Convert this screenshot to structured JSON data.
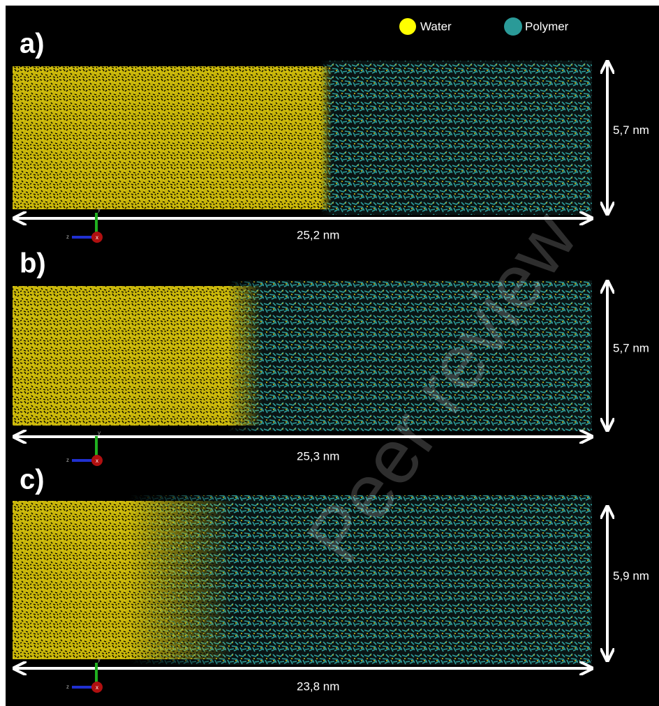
{
  "legend": [
    {
      "label": "Water"
    },
    {
      "label": "Polymer"
    }
  ],
  "panels": [
    {
      "label": "a)",
      "height": "5,7 nm",
      "length": "25,2 nm"
    },
    {
      "label": "b)",
      "height": "5,7 nm",
      "length": "25,3 nm"
    },
    {
      "label": "c)",
      "height": "5,9 nm",
      "length": "23,8 nm"
    }
  ],
  "axes": {
    "z": "z",
    "y": "y",
    "x": "x"
  },
  "watermark": "Peer review"
}
